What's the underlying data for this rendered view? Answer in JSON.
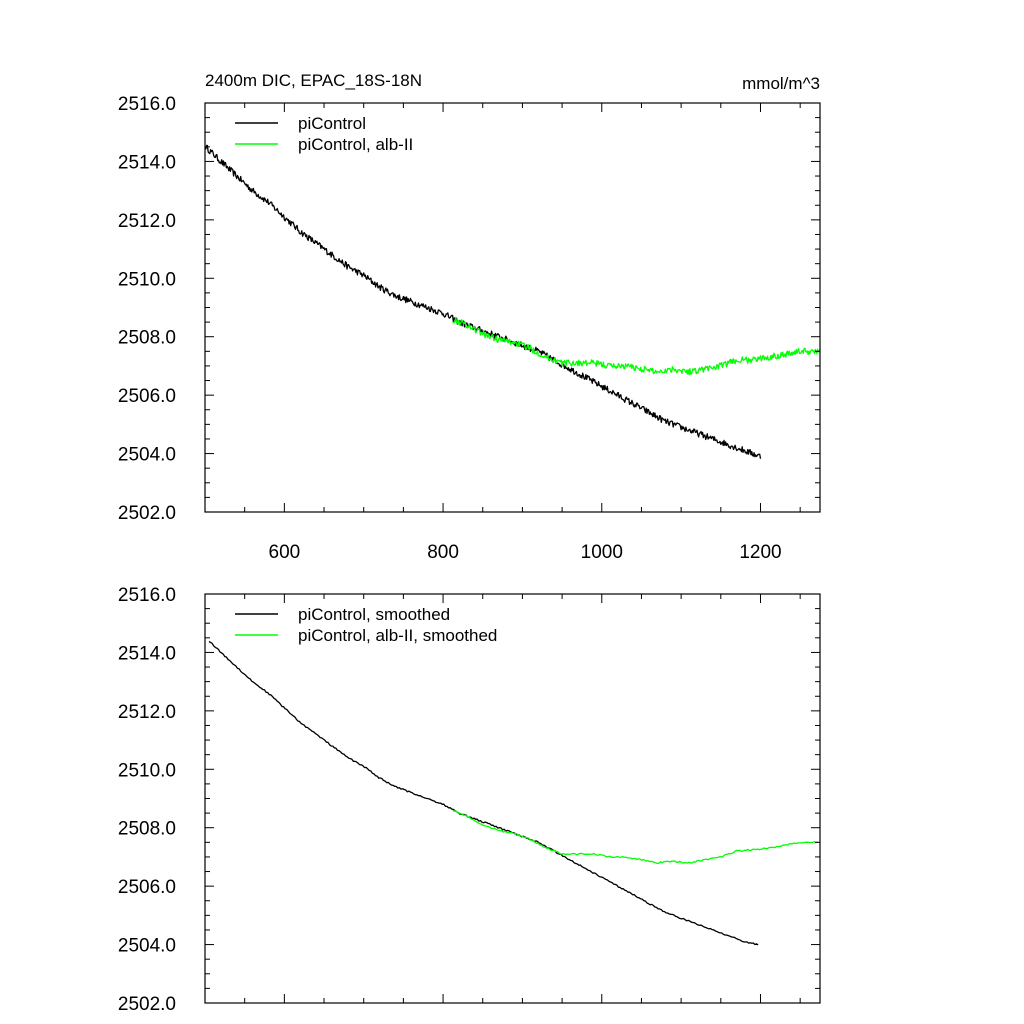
{
  "chart_data": [
    {
      "type": "line",
      "title_left": "2400m DIC, EPAC_18S-18N",
      "title_right": "mmol/m^3",
      "xlabel": "",
      "ylabel": "",
      "xlim": [
        500,
        1275
      ],
      "ylim": [
        2502.0,
        2516.0
      ],
      "xticks": [
        600,
        800,
        1000,
        1200
      ],
      "x_tick_labels": [
        "600",
        "800",
        "1000",
        "1200"
      ],
      "yticks": [
        2502,
        2504,
        2506,
        2508,
        2510,
        2512,
        2514,
        2516
      ],
      "y_tick_labels": [
        "2502.0",
        "2504.0",
        "2506.0",
        "2508.0",
        "2510.0",
        "2512.0",
        "2514.0",
        "2516.0"
      ],
      "legend_position": "top-left",
      "series": [
        {
          "name": "piControl",
          "color": "#000000",
          "noisy": true,
          "x": [
            501,
            520,
            540,
            560,
            580,
            600,
            620,
            640,
            660,
            680,
            700,
            720,
            740,
            760,
            780,
            800,
            820,
            840,
            860,
            880,
            900,
            920,
            940,
            960,
            980,
            1000,
            1020,
            1040,
            1060,
            1080,
            1100,
            1120,
            1140,
            1160,
            1180,
            1200
          ],
          "y": [
            2514.5,
            2514.0,
            2513.5,
            2513.0,
            2512.6,
            2512.1,
            2511.6,
            2511.2,
            2510.8,
            2510.4,
            2510.1,
            2509.7,
            2509.4,
            2509.2,
            2509.0,
            2508.8,
            2508.5,
            2508.3,
            2508.1,
            2507.9,
            2507.7,
            2507.5,
            2507.2,
            2506.9,
            2506.6,
            2506.3,
            2506.0,
            2505.7,
            2505.4,
            2505.1,
            2504.9,
            2504.7,
            2504.5,
            2504.3,
            2504.1,
            2503.9
          ]
        },
        {
          "name": "piControl, alb-II",
          "color": "#00ff00",
          "noisy": true,
          "x": [
            812,
            830,
            850,
            870,
            890,
            910,
            930,
            950,
            970,
            990,
            1010,
            1030,
            1050,
            1070,
            1090,
            1110,
            1130,
            1150,
            1170,
            1190,
            1210,
            1230,
            1250,
            1275
          ],
          "y": [
            2508.6,
            2508.4,
            2508.1,
            2507.9,
            2507.8,
            2507.6,
            2507.3,
            2507.1,
            2507.1,
            2507.1,
            2507.0,
            2507.0,
            2506.9,
            2506.8,
            2506.9,
            2506.8,
            2506.9,
            2507.0,
            2507.2,
            2507.2,
            2507.3,
            2507.4,
            2507.5,
            2507.5
          ]
        }
      ]
    },
    {
      "type": "line",
      "xlabel": "",
      "ylabel": "",
      "xlim": [
        500,
        1275
      ],
      "ylim": [
        2502.0,
        2516.0
      ],
      "xticks": [
        600,
        800,
        1000,
        1200
      ],
      "yticks": [
        2502,
        2504,
        2506,
        2508,
        2510,
        2512,
        2514,
        2516
      ],
      "y_tick_labels": [
        "2502.0",
        "2504.0",
        "2506.0",
        "2508.0",
        "2510.0",
        "2512.0",
        "2514.0",
        "2516.0"
      ],
      "legend_position": "top-left",
      "series": [
        {
          "name": "piControl, smoothed",
          "color": "#000000",
          "noisy": false,
          "x": [
            505,
            520,
            540,
            560,
            580,
            600,
            620,
            640,
            660,
            680,
            700,
            720,
            740,
            760,
            780,
            800,
            820,
            840,
            860,
            880,
            900,
            920,
            940,
            960,
            980,
            1000,
            1020,
            1040,
            1060,
            1080,
            1100,
            1120,
            1140,
            1160,
            1180,
            1197
          ],
          "y": [
            2514.4,
            2514.0,
            2513.5,
            2513.0,
            2512.6,
            2512.1,
            2511.6,
            2511.2,
            2510.8,
            2510.4,
            2510.1,
            2509.7,
            2509.4,
            2509.2,
            2509.0,
            2508.8,
            2508.5,
            2508.3,
            2508.1,
            2507.9,
            2507.7,
            2507.5,
            2507.2,
            2506.9,
            2506.6,
            2506.3,
            2506.0,
            2505.7,
            2505.4,
            2505.1,
            2504.9,
            2504.7,
            2504.5,
            2504.3,
            2504.1,
            2504.0
          ]
        },
        {
          "name": "piControl, alb-II, smoothed",
          "color": "#00ff00",
          "noisy": false,
          "x": [
            812,
            830,
            850,
            870,
            890,
            910,
            930,
            950,
            970,
            990,
            1010,
            1030,
            1050,
            1070,
            1090,
            1110,
            1130,
            1150,
            1170,
            1190,
            1210,
            1230,
            1250,
            1272
          ],
          "y": [
            2508.6,
            2508.4,
            2508.1,
            2507.9,
            2507.8,
            2507.6,
            2507.3,
            2507.1,
            2507.1,
            2507.1,
            2507.0,
            2507.0,
            2506.9,
            2506.8,
            2506.85,
            2506.8,
            2506.9,
            2507.0,
            2507.2,
            2507.25,
            2507.3,
            2507.4,
            2507.5,
            2507.5
          ]
        }
      ]
    }
  ]
}
